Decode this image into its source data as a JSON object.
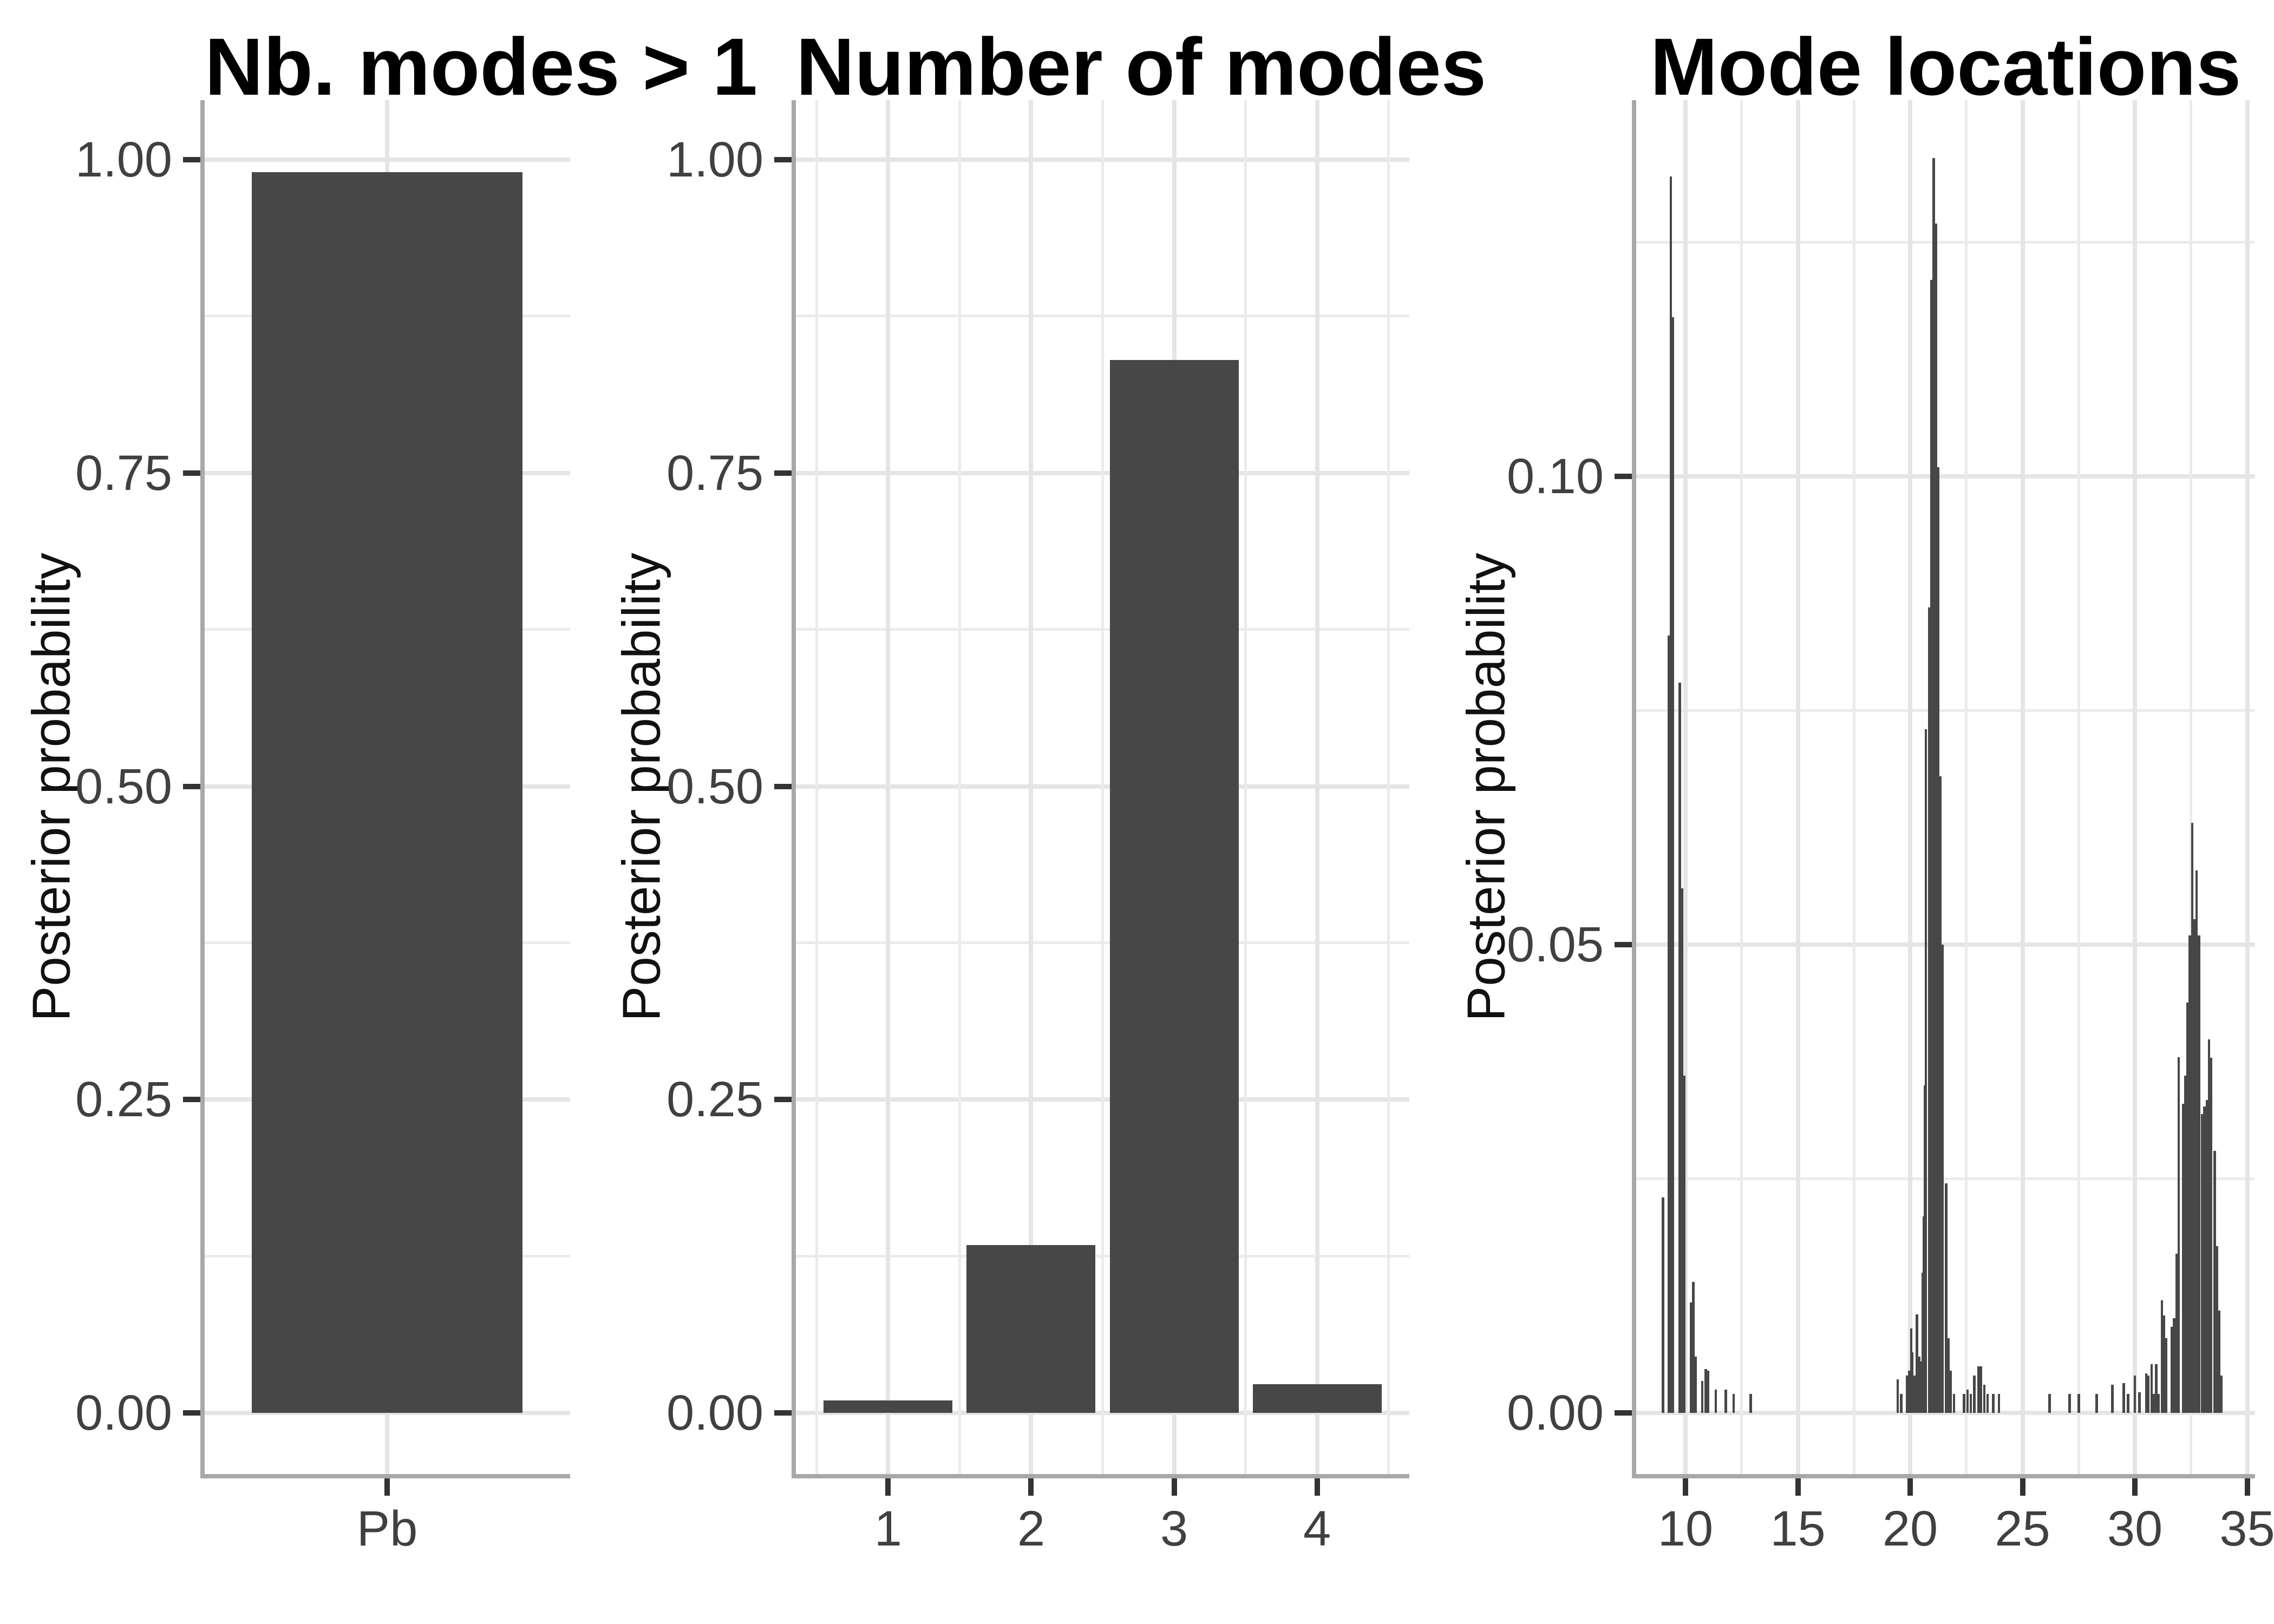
{
  "colors": {
    "bar_fill": "#474747",
    "grid_major": "#E5E5E5",
    "grid_minor": "#EBEBEB",
    "axis_line": "#A8A8A8",
    "tick_mark": "#333333",
    "tick_label": "#404040",
    "title": "#000000"
  },
  "chart_data": [
    {
      "type": "bar",
      "title": "Nb. modes > 1",
      "ylabel": "Posterior probability",
      "xlabel": "",
      "categories": [
        "Pb"
      ],
      "values": [
        0.99
      ],
      "ylim": [
        0,
        1.05
      ],
      "y_ticks": [
        {
          "v": 0.0,
          "label": "0.00"
        },
        {
          "v": 0.25,
          "label": "0.25"
        },
        {
          "v": 0.5,
          "label": "0.50"
        },
        {
          "v": 0.75,
          "label": "0.75"
        },
        {
          "v": 1.0,
          "label": "1.00"
        }
      ],
      "y_minor": [
        0.125,
        0.375,
        0.625,
        0.875
      ],
      "grid": "on",
      "legend": "none"
    },
    {
      "type": "bar",
      "title": "Number of modes",
      "ylabel": "Posterior probability",
      "xlabel": "",
      "categories": [
        "1",
        "2",
        "3",
        "4"
      ],
      "x_positions": [
        1,
        2,
        3,
        4
      ],
      "values": [
        0.01,
        0.134,
        0.84,
        0.023
      ],
      "xlim": [
        0.355,
        4.645
      ],
      "x_minor": [
        0.5,
        1.5,
        2.5,
        3.5,
        4.5
      ],
      "ylim": [
        0,
        1.05
      ],
      "y_ticks": [
        {
          "v": 0.0,
          "label": "0.00"
        },
        {
          "v": 0.25,
          "label": "0.25"
        },
        {
          "v": 0.5,
          "label": "0.50"
        },
        {
          "v": 0.75,
          "label": "0.75"
        },
        {
          "v": 1.0,
          "label": "1.00"
        }
      ],
      "y_minor": [
        0.125,
        0.375,
        0.625,
        0.875
      ],
      "grid": "on",
      "legend": "none"
    },
    {
      "type": "histogram",
      "title": "Mode locations",
      "ylabel": "Posterior probability",
      "xlabel": "",
      "xlim": [
        7.8,
        35.4
      ],
      "ylim": [
        0,
        0.14
      ],
      "bin_width": 0.1,
      "x_ticks": [
        {
          "v": 10,
          "label": "10"
        },
        {
          "v": 15,
          "label": "15"
        },
        {
          "v": 20,
          "label": "20"
        },
        {
          "v": 25,
          "label": "25"
        },
        {
          "v": 30,
          "label": "30"
        },
        {
          "v": 35,
          "label": "35"
        }
      ],
      "x_minor": [
        12.5,
        17.5,
        22.5,
        27.5,
        32.5
      ],
      "y_ticks": [
        {
          "v": 0.0,
          "label": "0.00"
        },
        {
          "v": 0.05,
          "label": "0.05"
        },
        {
          "v": 0.1,
          "label": "0.10"
        }
      ],
      "y_minor": [
        0.025,
        0.075,
        0.125
      ],
      "grid": "on",
      "legend": "none",
      "bars": [
        [
          9.0,
          0.023
        ],
        [
          9.25,
          0.083
        ],
        [
          9.35,
          0.132
        ],
        [
          9.45,
          0.117
        ],
        [
          9.75,
          0.078
        ],
        [
          9.85,
          0.056
        ],
        [
          9.95,
          0.036
        ],
        [
          10.25,
          0.0118
        ],
        [
          10.35,
          0.014
        ],
        [
          10.45,
          0.006
        ],
        [
          10.75,
          0.0034
        ],
        [
          10.9,
          0.0047
        ],
        [
          11.0,
          0.0045
        ],
        [
          11.35,
          0.0025
        ],
        [
          11.8,
          0.0025
        ],
        [
          12.15,
          0.002
        ],
        [
          12.9,
          0.002
        ],
        [
          19.45,
          0.0036
        ],
        [
          19.6,
          0.002
        ],
        [
          19.85,
          0.004
        ],
        [
          19.95,
          0.0045
        ],
        [
          20.05,
          0.009
        ],
        [
          20.1,
          0.0065
        ],
        [
          20.2,
          0.004
        ],
        [
          20.3,
          0.0105
        ],
        [
          20.4,
          0.006
        ],
        [
          20.5,
          0.0055
        ],
        [
          20.55,
          0.015
        ],
        [
          20.6,
          0.021
        ],
        [
          20.65,
          0.035
        ],
        [
          20.7,
          0.073
        ],
        [
          20.85,
          0.086
        ],
        [
          20.95,
          0.121
        ],
        [
          21.05,
          0.134
        ],
        [
          21.15,
          0.127
        ],
        [
          21.25,
          0.101
        ],
        [
          21.35,
          0.068
        ],
        [
          21.45,
          0.05
        ],
        [
          21.6,
          0.0245
        ],
        [
          21.7,
          0.008
        ],
        [
          21.8,
          0.0045
        ],
        [
          21.95,
          0.002
        ],
        [
          22.4,
          0.002
        ],
        [
          22.55,
          0.0025
        ],
        [
          22.7,
          0.002
        ],
        [
          22.85,
          0.004
        ],
        [
          23.05,
          0.005
        ],
        [
          23.15,
          0.005
        ],
        [
          23.3,
          0.003
        ],
        [
          23.45,
          0.002
        ],
        [
          23.7,
          0.002
        ],
        [
          23.95,
          0.002
        ],
        [
          26.2,
          0.002
        ],
        [
          27.1,
          0.002
        ],
        [
          27.5,
          0.002
        ],
        [
          28.3,
          0.002
        ],
        [
          29.0,
          0.003
        ],
        [
          29.5,
          0.0032
        ],
        [
          29.7,
          0.002
        ],
        [
          30.0,
          0.004
        ],
        [
          30.2,
          0.0022
        ],
        [
          30.5,
          0.0042
        ],
        [
          30.6,
          0.004
        ],
        [
          30.75,
          0.0052
        ],
        [
          30.85,
          0.002
        ],
        [
          30.95,
          0.0052
        ],
        [
          31.05,
          0.002
        ],
        [
          31.2,
          0.012
        ],
        [
          31.3,
          0.0104
        ],
        [
          31.4,
          0.008
        ],
        [
          31.65,
          0.0092
        ],
        [
          31.75,
          0.0101
        ],
        [
          31.85,
          0.017
        ],
        [
          31.95,
          0.038
        ],
        [
          32.15,
          0.033
        ],
        [
          32.25,
          0.036
        ],
        [
          32.35,
          0.0438
        ],
        [
          32.45,
          0.051
        ],
        [
          32.55,
          0.063
        ],
        [
          32.65,
          0.0527
        ],
        [
          32.75,
          0.0579
        ],
        [
          32.85,
          0.051
        ],
        [
          33.0,
          0.0319
        ],
        [
          33.1,
          0.0327
        ],
        [
          33.2,
          0.0334
        ],
        [
          33.3,
          0.0399
        ],
        [
          33.4,
          0.0379
        ],
        [
          33.55,
          0.028
        ],
        [
          33.65,
          0.0178
        ],
        [
          33.75,
          0.0109
        ],
        [
          33.85,
          0.004
        ]
      ]
    }
  ]
}
